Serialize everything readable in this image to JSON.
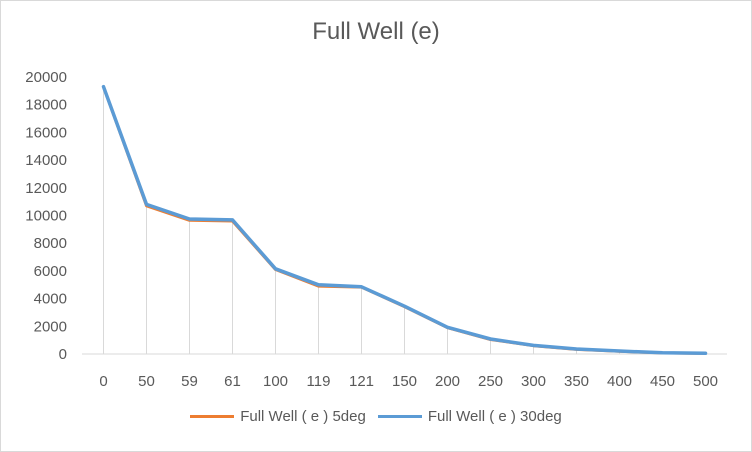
{
  "chart_data": {
    "type": "line",
    "title": "Full Well (e)",
    "xlabel": "",
    "ylabel": "",
    "categories": [
      "0",
      "50",
      "59",
      "61",
      "100",
      "119",
      "121",
      "150",
      "200",
      "250",
      "300",
      "350",
      "400",
      "450",
      "500"
    ],
    "ylim": [
      0,
      20000
    ],
    "yticks": [
      0,
      2000,
      4000,
      6000,
      8000,
      10000,
      12000,
      14000,
      16000,
      18000,
      20000
    ],
    "drop_lines": true,
    "legend_position": "bottom",
    "series": [
      {
        "name": "Full Well ( e ) 5deg",
        "color": "#ed7d31",
        "values": [
          19300,
          10700,
          9650,
          9600,
          6100,
          4900,
          4830,
          3420,
          1900,
          1050,
          600,
          330,
          200,
          80,
          40
        ]
      },
      {
        "name": "Full Well ( e ) 30deg",
        "color": "#5b9bd5",
        "values": [
          19300,
          10800,
          9750,
          9680,
          6150,
          5000,
          4850,
          3450,
          1930,
          1080,
          620,
          360,
          220,
          90,
          50
        ]
      }
    ]
  }
}
